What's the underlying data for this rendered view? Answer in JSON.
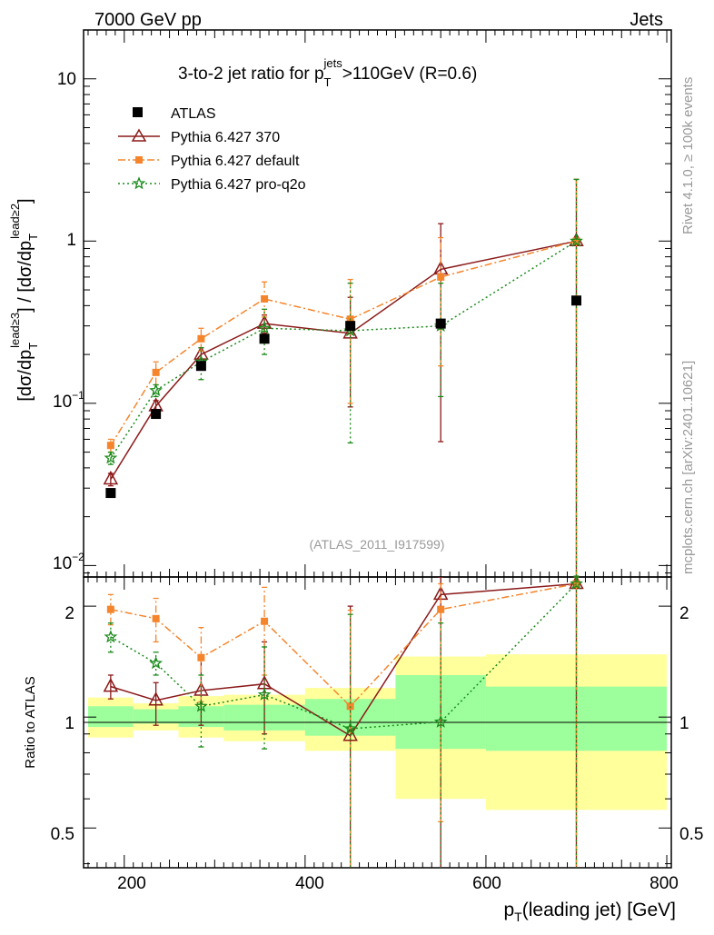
{
  "header": {
    "left": "7000 GeV pp",
    "right": "Jets",
    "side_top": "Rivet 4.1.0, ≥ 100k events",
    "side_bottom": "mcplots.cern.ch [arXiv:2401.10621]"
  },
  "chart_data": [
    {
      "type": "scatter",
      "panel": "main",
      "title_main": "3-to-2 jet ratio for p",
      "title_sup": "jets",
      "title_sub": "T",
      "title_rest": ">110GeV (R=0.6)",
      "ylabel": "[dσ/dp_T^{lead≥3}] / [dσ/dp_T^{lead≥2}]",
      "yscale": "log",
      "ylim": [
        0.0085,
        20
      ],
      "xlim": [
        155,
        805
      ],
      "ytick_labels": {
        "t1": "10",
        "t2": "1",
        "t3": "10",
        "t3_exp": "−1",
        "t4": "10",
        "t4_exp": "−2"
      },
      "watermark": "(ATLAS_2011_I917599)",
      "legend_position": "top-left",
      "series": [
        {
          "name": "ATLAS",
          "x": [
            185,
            235,
            285,
            355,
            450,
            550,
            700
          ],
          "y": [
            0.028,
            0.086,
            0.17,
            0.25,
            0.3,
            0.31,
            0.43
          ]
        },
        {
          "name": "Pythia 6.427 370",
          "x": [
            185,
            235,
            285,
            355,
            450,
            550,
            700
          ],
          "y": [
            0.034,
            0.096,
            0.2,
            0.31,
            0.27,
            0.67,
            1.0
          ],
          "err_lo": [
            0.031,
            0.088,
            0.18,
            0.27,
            0.095,
            0.058,
            0.0086
          ],
          "err_hi": [
            0.037,
            0.104,
            0.22,
            0.35,
            0.45,
            1.28,
            2.4
          ]
        },
        {
          "name": "Pythia 6.427 default",
          "x": [
            185,
            235,
            285,
            355,
            450,
            550,
            700
          ],
          "y": [
            0.055,
            0.155,
            0.25,
            0.44,
            0.33,
            0.6,
            1.0
          ],
          "err_lo": [
            0.05,
            0.13,
            0.21,
            0.34,
            0.1,
            0.17,
            0.0086
          ],
          "err_hi": [
            0.06,
            0.18,
            0.29,
            0.56,
            0.58,
            1.05,
            2.4
          ]
        },
        {
          "name": "Pythia 6.427 pro-q2o",
          "x": [
            185,
            235,
            285,
            355,
            450,
            550,
            700
          ],
          "y": [
            0.046,
            0.12,
            0.18,
            0.29,
            0.28,
            0.3,
            1.0
          ],
          "err_lo": [
            0.042,
            0.11,
            0.14,
            0.2,
            0.057,
            0.11,
            0.0086
          ],
          "err_hi": [
            0.05,
            0.13,
            0.22,
            0.38,
            0.55,
            0.55,
            2.4
          ]
        }
      ]
    },
    {
      "type": "scatter",
      "panel": "ratio",
      "ylabel": "Ratio to ATLAS",
      "yscale": "log",
      "ylim": [
        0.39,
        2.4
      ],
      "xlim": [
        155,
        805
      ],
      "xlabel": "p_T(leading jet) [GeV]",
      "xlabel_main": "p",
      "xlabel_sub": "T",
      "xlabel_rest": "(leading jet) [GeV]",
      "xticks": [
        200,
        400,
        600,
        800
      ],
      "xtick_labels": [
        "200",
        "400",
        "600",
        "800"
      ],
      "yticks": [
        0.5,
        1,
        2
      ],
      "ytick_labels": [
        "0.5",
        "1",
        "2"
      ],
      "bands": [
        {
          "x0": 160,
          "x1": 210,
          "y1_lo": 0.94,
          "y1_hi": 1.07,
          "y2_lo": 0.88,
          "y2_hi": 1.13
        },
        {
          "x0": 210,
          "x1": 260,
          "y1_lo": 0.96,
          "y1_hi": 1.05,
          "y2_lo": 0.92,
          "y2_hi": 1.09
        },
        {
          "x0": 260,
          "x1": 310,
          "y1_lo": 0.94,
          "y1_hi": 1.07,
          "y2_lo": 0.88,
          "y2_hi": 1.14
        },
        {
          "x0": 310,
          "x1": 400,
          "y1_lo": 0.92,
          "y1_hi": 1.08,
          "y2_lo": 0.86,
          "y2_hi": 1.15
        },
        {
          "x0": 400,
          "x1": 500,
          "y1_lo": 0.89,
          "y1_hi": 1.12,
          "y2_lo": 0.81,
          "y2_hi": 1.2
        },
        {
          "x0": 500,
          "x1": 600,
          "y1_lo": 0.82,
          "y1_hi": 1.3,
          "y2_lo": 0.6,
          "y2_hi": 1.46
        },
        {
          "x0": 600,
          "x1": 800,
          "y1_lo": 0.81,
          "y1_hi": 1.21,
          "y2_lo": 0.56,
          "y2_hi": 1.48
        }
      ],
      "series": [
        {
          "name": "Pythia 6.427 370",
          "x": [
            185,
            235,
            285,
            355,
            450,
            550,
            700
          ],
          "y": [
            1.21,
            1.11,
            1.18,
            1.23,
            0.89,
            2.15,
            2.3
          ],
          "err_lo": [
            1.12,
            0.95,
            0.95,
            0.9,
            0.33,
            0.3,
            0.3
          ],
          "err_hi": [
            1.3,
            1.24,
            1.45,
            1.6,
            2.0,
            2.4,
            2.4
          ]
        },
        {
          "name": "Pythia 6.427 default",
          "x": [
            185,
            235,
            285,
            355,
            450,
            550,
            700
          ],
          "y": [
            1.96,
            1.85,
            1.45,
            1.82,
            1.07,
            1.96,
            2.3
          ],
          "err_lo": [
            1.78,
            1.6,
            1.1,
            1.3,
            0.33,
            0.52,
            0.3
          ],
          "err_hi": [
            2.15,
            2.1,
            1.75,
            2.25,
            1.95,
            2.3,
            2.4
          ]
        },
        {
          "name": "Pythia 6.427 pro-q2o",
          "x": [
            185,
            235,
            285,
            355,
            450,
            550,
            700
          ],
          "y": [
            1.65,
            1.4,
            1.07,
            1.15,
            0.93,
            0.97,
            2.3
          ],
          "err_lo": [
            1.5,
            1.3,
            0.83,
            0.82,
            0.33,
            0.3,
            0.3
          ],
          "err_hi": [
            1.8,
            1.5,
            1.3,
            1.55,
            1.9,
            1.8,
            2.4
          ]
        }
      ]
    }
  ],
  "styles": {
    "atlas": "#000000",
    "pythia370": "#8b1a1a",
    "pythiaDefault": "#f5852c",
    "pythiaProq2o": "#1a8b1a",
    "band_inner": "#9cff9c",
    "band_outer": "#ffff9c",
    "side_text": "#999999",
    "watermark": "#999999"
  }
}
